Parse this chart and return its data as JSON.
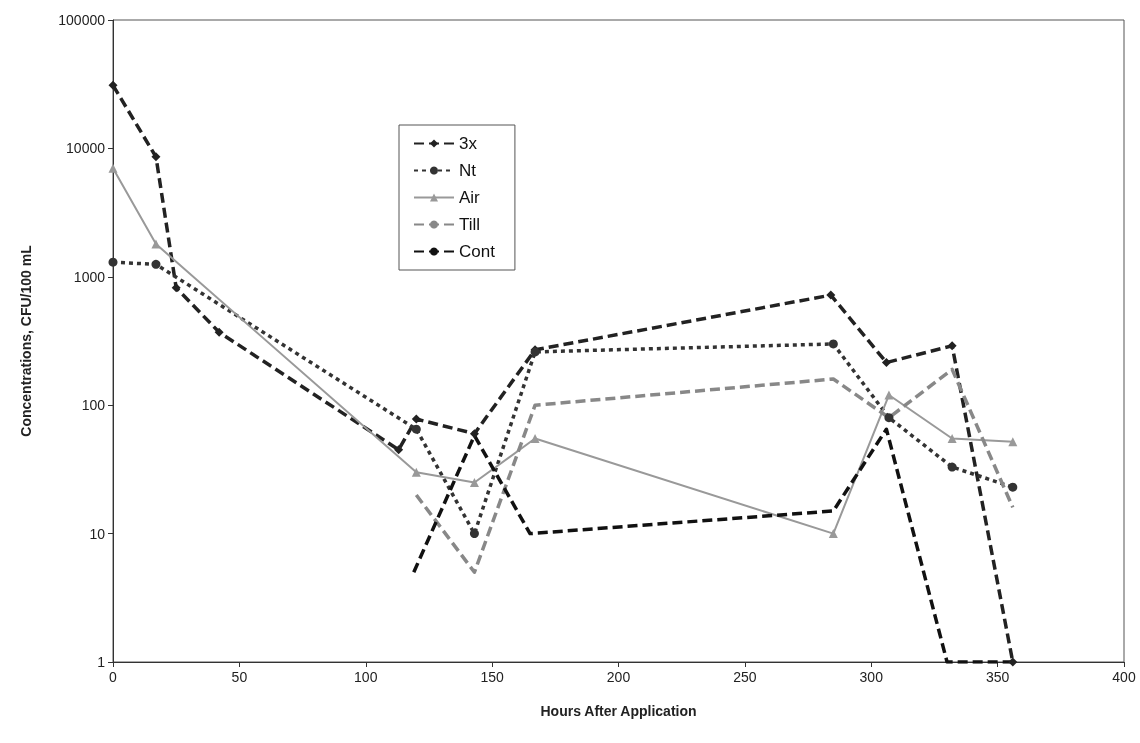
{
  "chart_data": {
    "type": "line",
    "xlabel": "Hours After Application",
    "ylabel": "Concentrations, CFU/100 mL",
    "log": "y",
    "grid": false,
    "legend": "top left",
    "xlim": [
      0,
      400
    ],
    "xticks": [
      0,
      50,
      100,
      150,
      200,
      250,
      300,
      350,
      400
    ],
    "ylim": [
      1,
      100000
    ],
    "yticks": [
      1,
      10,
      100,
      1000,
      10000,
      100000
    ],
    "series": [
      {
        "name": "3x",
        "color": "#222222",
        "marker": "diamond",
        "line_style": "dashed",
        "x": [
          0,
          17,
          25,
          42,
          113,
          120,
          143,
          167,
          284,
          306,
          332,
          356
        ],
        "values": [
          31000,
          8600,
          820,
          370,
          45,
          78,
          60,
          270,
          720,
          215,
          290,
          1
        ]
      },
      {
        "name": "Nt",
        "color": "#333333",
        "marker": "circle",
        "line_style": "dotted",
        "x": [
          0,
          17,
          120,
          143,
          167,
          285,
          307,
          332,
          356
        ],
        "values": [
          1300,
          1250,
          65,
          10,
          260,
          300,
          80,
          33,
          23
        ]
      },
      {
        "name": "Air",
        "color": "#999999",
        "marker": "triangle",
        "line_style": "solid",
        "x": [
          0,
          17,
          120,
          143,
          167,
          285,
          307,
          332,
          356
        ],
        "values": [
          7000,
          1800,
          30,
          25,
          55,
          10,
          120,
          55,
          52
        ]
      },
      {
        "name": "Till",
        "color": "#888888",
        "marker": "none",
        "line_style": "dashed",
        "x": [
          120,
          143,
          167,
          285,
          307,
          332,
          356
        ],
        "values": [
          20,
          5,
          100,
          160,
          80,
          190,
          16
        ]
      },
      {
        "name": "Cont",
        "color": "#111111",
        "marker": "none",
        "line_style": "dashed",
        "x": [
          119,
          143,
          165,
          285,
          306,
          330,
          356
        ],
        "values": [
          5,
          58,
          10,
          15,
          65,
          1,
          1
        ]
      }
    ]
  }
}
